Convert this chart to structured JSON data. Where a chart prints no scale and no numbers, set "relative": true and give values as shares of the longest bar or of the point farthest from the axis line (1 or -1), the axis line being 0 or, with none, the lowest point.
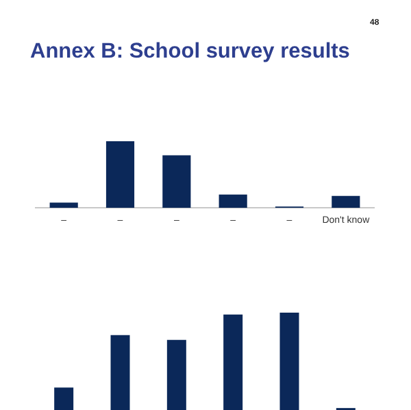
{
  "chart_data": [
    {
      "type": "bar",
      "title": "Annex B: School survey results",
      "annotations": [
        "48"
      ],
      "categories": [
        "–",
        "–",
        "–",
        "–",
        "–",
        "Don't know"
      ],
      "values": [
        0.08,
        1,
        0.79,
        0.2,
        0.02,
        0.18
      ],
      "color": "#0b2859",
      "relative": true,
      "grid": false,
      "legend": false
    },
    {
      "type": "bar",
      "categories": [
        null,
        null,
        null,
        null,
        null,
        null
      ],
      "values": [
        0.23,
        0.77,
        0.72,
        0.98,
        1,
        0.02
      ],
      "color": "#0b2859",
      "relative": true,
      "grid": false,
      "legend": false,
      "tick_labels": false
    }
  ]
}
